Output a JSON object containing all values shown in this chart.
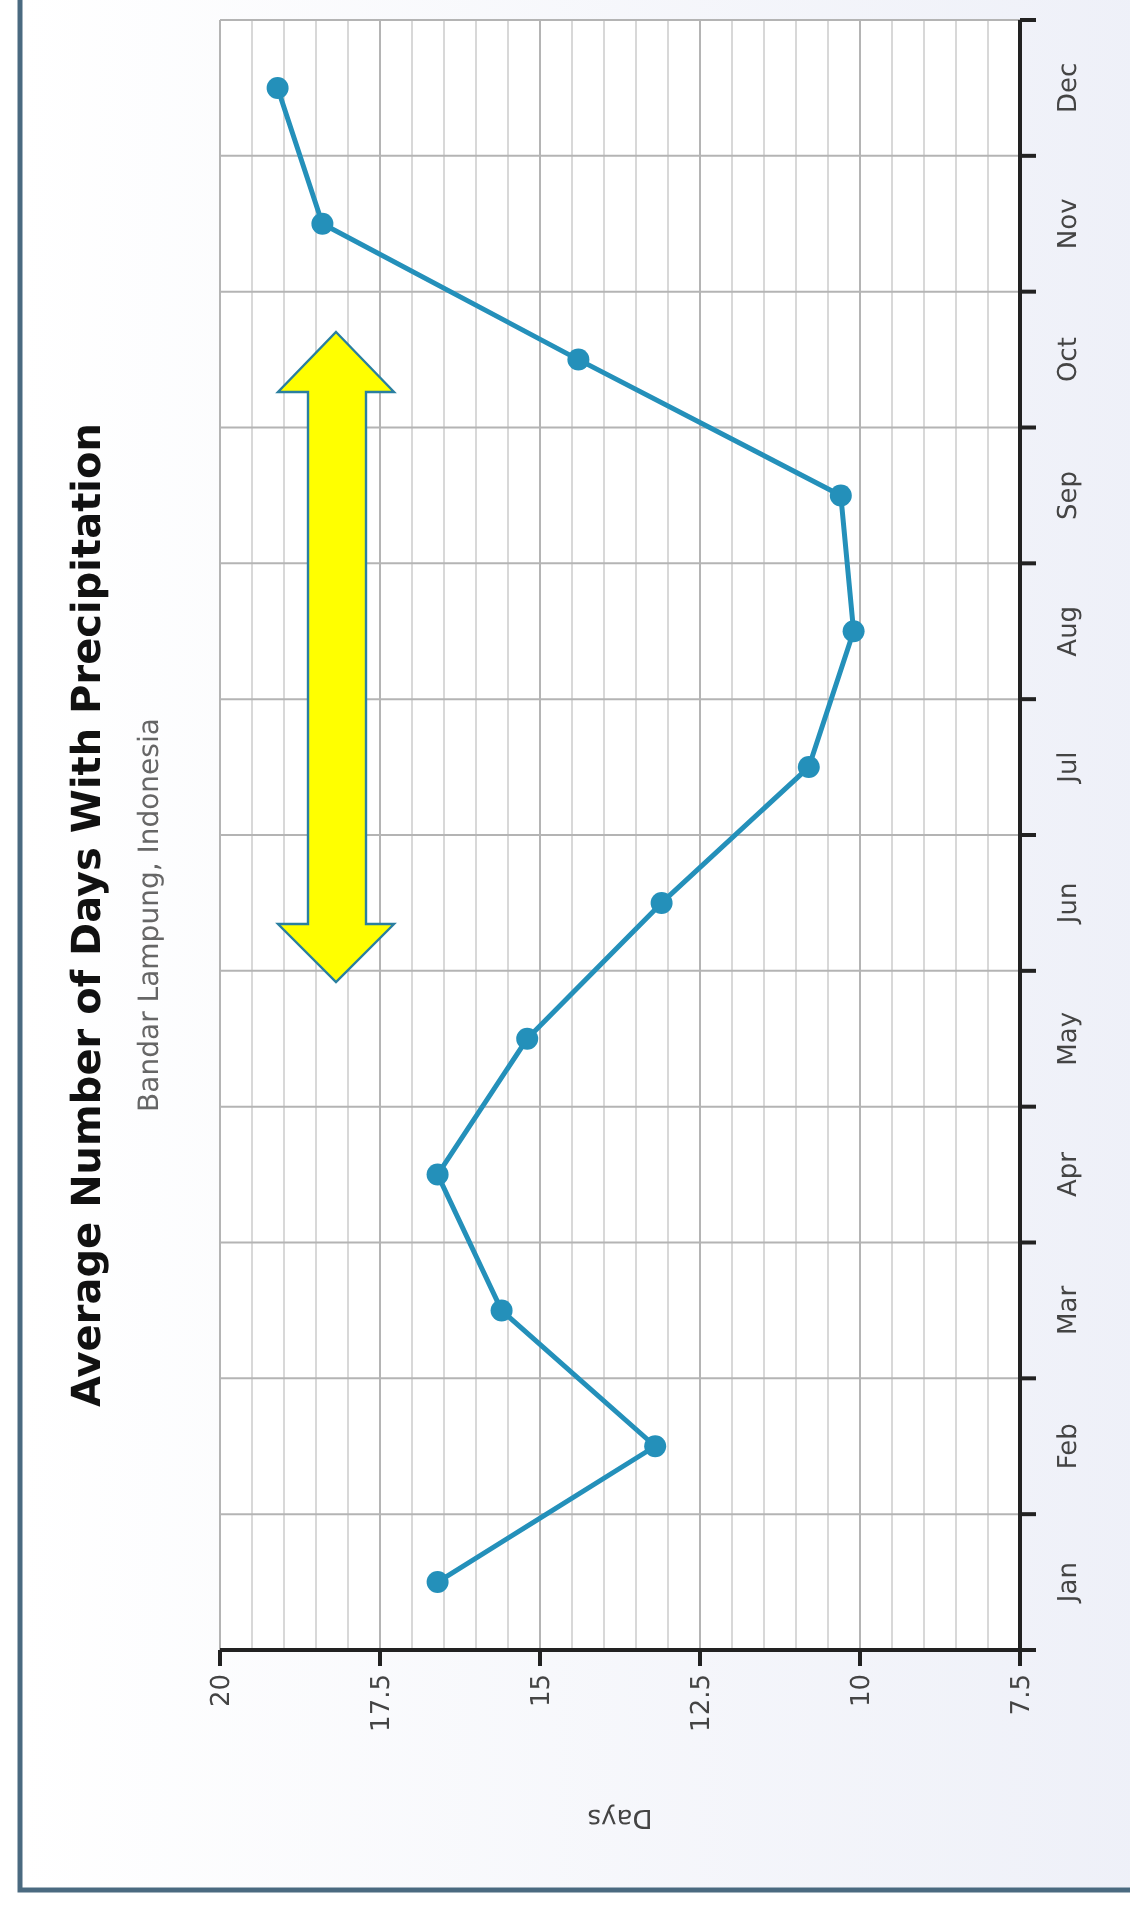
{
  "chart_data": {
    "type": "line",
    "orientation": "horizontal",
    "title": "Average Number of Days With Precipitation",
    "subtitle": "Bandar Lampung, Indonesia",
    "xlabel": "Days",
    "categories": [
      "Dec",
      "Nov",
      "Oct",
      "Sep",
      "Aug",
      "Jul",
      "Jun",
      "May",
      "Apr",
      "Mar",
      "Feb",
      "Jan"
    ],
    "series": [
      {
        "color": "#2490ba",
        "values": [
          19.1,
          18.4,
          14.4,
          10.3,
          10.1,
          10.8,
          13.1,
          15.2,
          16.6,
          15.6,
          13.2,
          16.6
        ]
      }
    ],
    "xlim": [
      20,
      7.5
    ],
    "xticks": [
      20,
      {
        "value": 19.5,
        "label": null
      },
      {
        "value": 19,
        "label": null
      },
      {
        "value": 18.5,
        "label": null
      },
      {
        "value": 18,
        "label": null
      },
      17.5,
      {
        "value": 17,
        "label": null
      },
      {
        "value": 16.5,
        "label": null
      },
      {
        "value": 16,
        "label": null
      },
      {
        "value": 15.5,
        "label": null
      },
      15,
      {
        "value": 14.5,
        "label": null
      },
      {
        "value": 14,
        "label": null
      },
      {
        "value": 13.5,
        "label": null
      },
      {
        "value": 13,
        "label": null
      },
      12.5,
      {
        "value": 12,
        "label": null
      },
      {
        "value": 11.5,
        "label": null
      },
      {
        "value": 11,
        "label": null
      },
      {
        "value": 10.5,
        "label": null
      },
      10,
      {
        "value": 9.5,
        "label": null
      },
      {
        "value": 9,
        "label": null
      },
      {
        "value": 8.5,
        "label": null
      },
      {
        "value": 8,
        "label": null
      },
      7.5
    ],
    "grid": true,
    "marker": "circle",
    "line_style": "solid"
  }
}
